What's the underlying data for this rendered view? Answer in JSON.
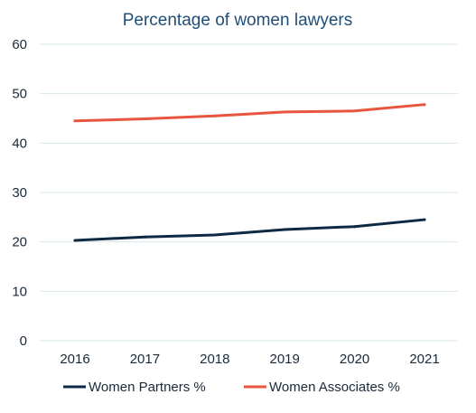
{
  "chart_data": {
    "type": "line",
    "title": "Percentage of women lawyers",
    "xlabel": "",
    "ylabel": "",
    "categories": [
      "2016",
      "2017",
      "2018",
      "2019",
      "2020",
      "2021"
    ],
    "ylim": [
      0,
      60
    ],
    "yticks": [
      0,
      10,
      20,
      30,
      40,
      50,
      60
    ],
    "grid": true,
    "legend_position": "bottom",
    "series": [
      {
        "name": "Women Partners %",
        "color": "#0d2a45",
        "values": [
          20.3,
          21.0,
          21.4,
          22.5,
          23.1,
          24.5
        ]
      },
      {
        "name": "Women Associates %",
        "color": "#e8553e",
        "values": [
          44.5,
          44.9,
          45.5,
          46.3,
          46.5,
          47.8
        ]
      }
    ]
  }
}
